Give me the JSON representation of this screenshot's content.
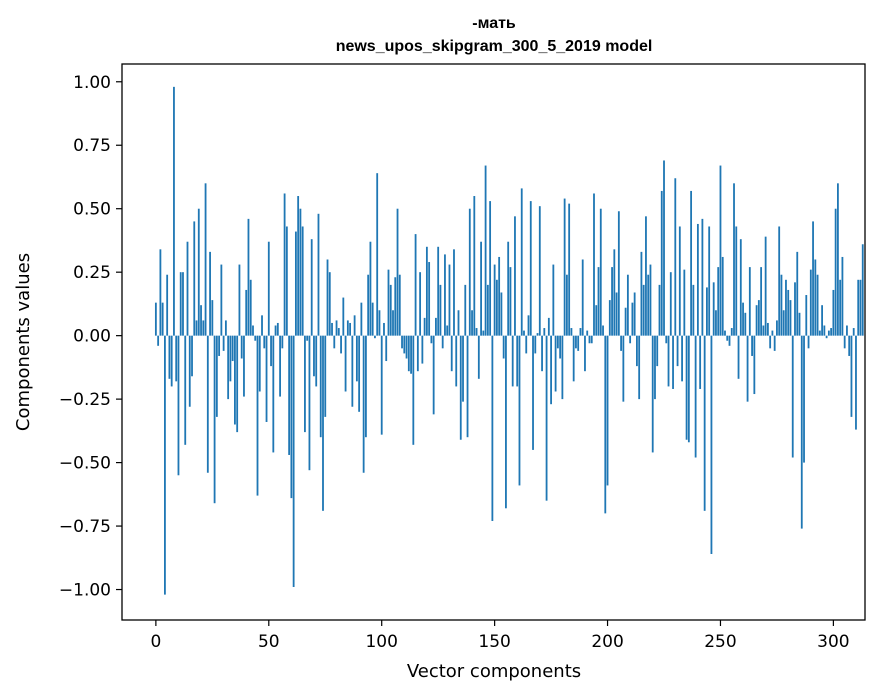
{
  "chart_data": {
    "type": "bar",
    "title_line1": "-мать",
    "title_line2": "news_upos_skipgram_300_5_2019 model",
    "xlabel": "Vector components",
    "ylabel": "Components values",
    "xlim": [
      -15,
      314
    ],
    "ylim": [
      -1.12,
      1.07
    ],
    "xticks": [
      0,
      50,
      100,
      150,
      200,
      250,
      300
    ],
    "yticks": [
      -1.0,
      -0.75,
      -0.5,
      -0.25,
      0.0,
      0.25,
      0.5,
      0.75,
      1.0
    ],
    "ytick_labels": [
      "−1.00",
      "−0.75",
      "−0.50",
      "−0.25",
      "0.00",
      "0.25",
      "0.50",
      "0.75",
      "1.00"
    ],
    "bar_color": "#1f77b4",
    "series": [
      {
        "name": "-мать",
        "values": [
          0.13,
          -0.04,
          0.34,
          0.13,
          -1.02,
          0.24,
          -0.17,
          -0.2,
          0.98,
          -0.18,
          -0.55,
          0.25,
          0.25,
          -0.43,
          0.37,
          -0.28,
          -0.16,
          0.45,
          0.06,
          0.5,
          0.12,
          0.06,
          0.6,
          -0.54,
          0.33,
          0.14,
          -0.66,
          -0.32,
          -0.08,
          0.28,
          -0.06,
          0.06,
          -0.25,
          -0.18,
          -0.1,
          -0.35,
          -0.38,
          0.28,
          -0.09,
          -0.24,
          0.18,
          0.46,
          0.22,
          0.04,
          -0.02,
          -0.63,
          -0.22,
          0.08,
          -0.05,
          -0.34,
          0.37,
          -0.12,
          -0.46,
          0.04,
          0.05,
          -0.24,
          -0.05,
          0.56,
          0.43,
          -0.47,
          -0.64,
          -0.99,
          0.41,
          0.55,
          0.5,
          0.43,
          -0.38,
          -0.02,
          -0.53,
          0.38,
          -0.16,
          -0.2,
          0.48,
          -0.4,
          -0.69,
          -0.32,
          0.3,
          0.25,
          0.05,
          -0.05,
          0.06,
          0.03,
          -0.07,
          0.15,
          -0.22,
          0.06,
          0.05,
          -0.28,
          0.08,
          -0.18,
          -0.3,
          0.13,
          -0.54,
          -0.4,
          0.24,
          0.37,
          0.13,
          -0.01,
          0.64,
          0.1,
          -0.39,
          0.05,
          -0.1,
          0.26,
          0.2,
          0.1,
          0.23,
          0.5,
          0.24,
          -0.05,
          -0.07,
          -0.09,
          -0.14,
          -0.15,
          -0.43,
          0.4,
          -0.14,
          0.25,
          -0.11,
          0.07,
          0.35,
          0.29,
          -0.03,
          -0.31,
          0.07,
          0.35,
          0.2,
          -0.05,
          0.32,
          0.04,
          0.28,
          -0.14,
          0.34,
          -0.2,
          0.1,
          -0.41,
          -0.26,
          0.2,
          -0.4,
          0.5,
          0.1,
          0.55,
          0.03,
          -0.17,
          0.37,
          0.02,
          0.67,
          0.2,
          0.53,
          -0.73,
          0.28,
          0.22,
          0.31,
          0.17,
          -0.09,
          -0.68,
          0.37,
          0.27,
          -0.2,
          0.47,
          -0.2,
          -0.59,
          0.58,
          0.02,
          -0.07,
          0.08,
          0.53,
          -0.45,
          -0.07,
          0.01,
          0.51,
          -0.14,
          0.03,
          -0.65,
          0.07,
          -0.27,
          0.28,
          -0.22,
          -0.05,
          -0.09,
          -0.25,
          0.54,
          0.24,
          0.52,
          0.03,
          -0.18,
          -0.05,
          -0.06,
          0.03,
          0.3,
          -0.14,
          0.02,
          -0.03,
          -0.03,
          0.56,
          0.12,
          0.27,
          0.5,
          0.04,
          -0.7,
          -0.59,
          0.14,
          0.27,
          0.34,
          0.17,
          0.49,
          -0.06,
          -0.26,
          0.11,
          0.24,
          -0.03,
          0.13,
          0.17,
          -0.12,
          -0.25,
          0.33,
          0.2,
          0.47,
          0.24,
          0.28,
          -0.46,
          -0.25,
          -0.12,
          0.2,
          0.57,
          0.69,
          -0.03,
          -0.2,
          0.25,
          -0.21,
          0.62,
          -0.12,
          0.43,
          -0.18,
          0.26,
          -0.41,
          -0.42,
          0.57,
          0.2,
          -0.48,
          0.44,
          -0.21,
          0.46,
          -0.69,
          0.19,
          0.43,
          -0.86,
          0.21,
          0.1,
          0.27,
          0.67,
          0.31,
          0.02,
          -0.02,
          -0.04,
          0.03,
          0.6,
          0.43,
          -0.17,
          0.38,
          0.13,
          0.09,
          -0.26,
          0.27,
          -0.08,
          -0.23,
          0.12,
          0.14,
          0.27,
          0.04,
          0.39,
          0.05,
          -0.05,
          0.02,
          -0.06,
          0.06,
          0.43,
          0.24,
          0.1,
          0.22,
          0.18,
          0.14,
          -0.48,
          0.21,
          0.33,
          0.09,
          -0.76,
          -0.5,
          0.16,
          -0.05,
          0.26,
          0.45,
          0.3,
          0.24,
          0.02,
          0.12,
          0.04,
          -0.01,
          0.02,
          0.03,
          0.18,
          0.5,
          0.6,
          0.22,
          0.31,
          -0.05,
          0.04,
          -0.08,
          -0.32,
          0.03,
          -0.37,
          0.22,
          0.22,
          0.36
        ]
      }
    ]
  }
}
